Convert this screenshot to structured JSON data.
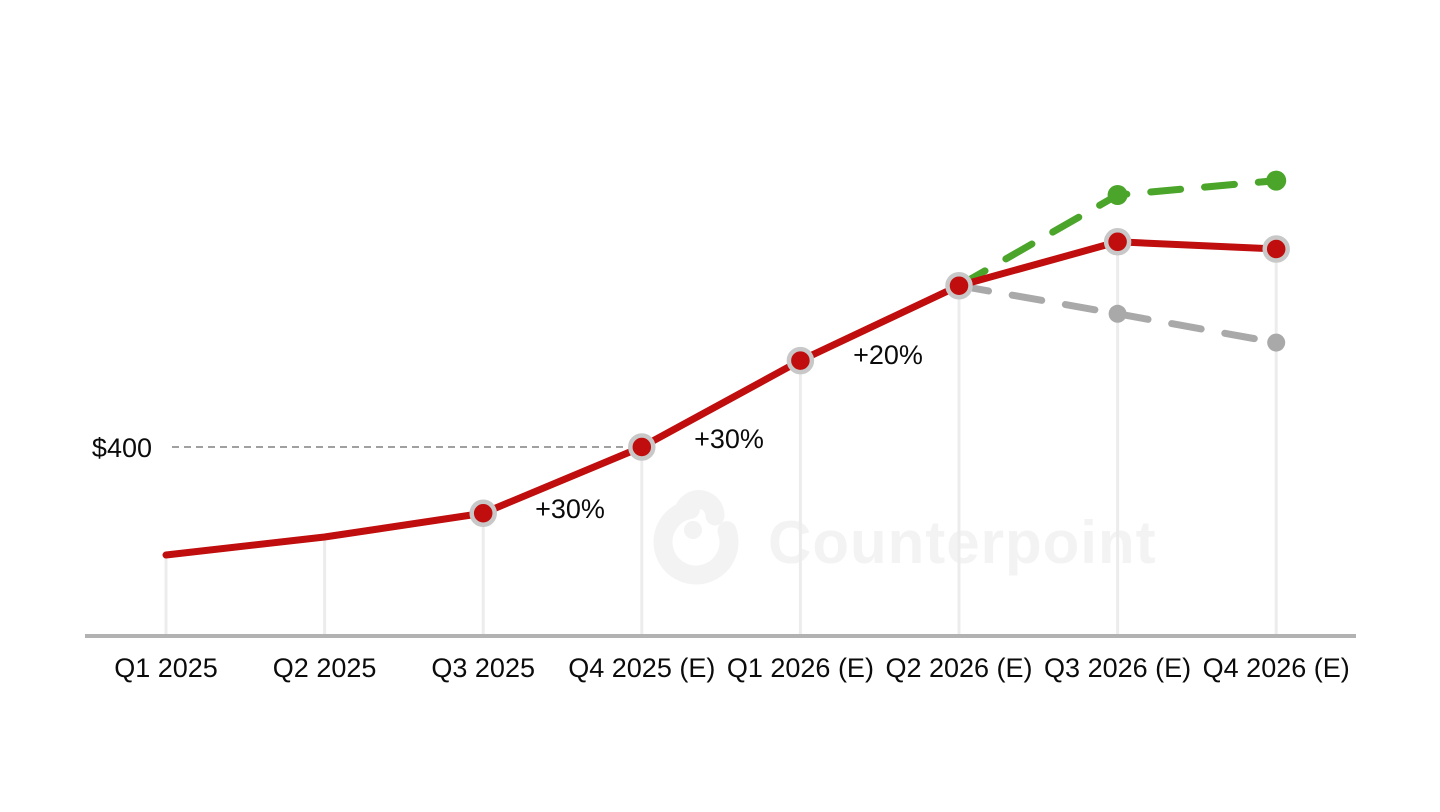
{
  "page": {
    "background": "#ffffff"
  },
  "watermark": {
    "text": "Counterpoint"
  },
  "colors": {
    "axis": "#b2b2b2",
    "stems": "#ececec",
    "marker_ring": "#c8c8c8",
    "reference_line": "#a0a0a0",
    "label_text": "#0b0b0b",
    "watermark": "#f3f3f3",
    "base_red": "#c00d0d",
    "upside_green": "#4aa52a",
    "downside_gray": "#a9a9a9"
  },
  "chart_data": {
    "type": "line",
    "title": "",
    "xlabel": "",
    "ylabel": "",
    "categories": [
      "Q1 2025",
      "Q2 2025",
      "Q3 2025",
      "Q4 2025 (E)",
      "Q1 2026 (E)",
      "Q2 2026 (E)",
      "Q3 2026 (E)",
      "Q4 2026 (E)"
    ],
    "series": [
      {
        "key": "base",
        "style": "solid",
        "color": "#c00d0d",
        "values": [
          250,
          275,
          308,
          400,
          520,
          624,
          685,
          675
        ],
        "marker_indices": [
          2,
          3,
          4,
          5,
          6,
          7
        ]
      },
      {
        "key": "upside",
        "style": "dashed",
        "color": "#4aa52a",
        "values": [
          null,
          null,
          null,
          null,
          null,
          624,
          750,
          770
        ],
        "marker_indices": [
          6,
          7
        ]
      },
      {
        "key": "downside",
        "style": "dashed",
        "color": "#a9a9a9",
        "values": [
          null,
          null,
          null,
          null,
          null,
          624,
          585,
          545
        ],
        "marker_indices": [
          6,
          7
        ]
      }
    ],
    "annotations": [
      {
        "text": "+30%",
        "between": [
          "Q3 2025",
          "Q4 2025 (E)"
        ]
      },
      {
        "text": "+30%",
        "between": [
          "Q4 2025 (E)",
          "Q1 2026 (E)"
        ]
      },
      {
        "text": "+20%",
        "between": [
          "Q1 2026 (E)",
          "Q2 2026 (E)"
        ]
      }
    ],
    "reference": {
      "label": "$400",
      "value": 400,
      "category": "Q4 2025 (E)"
    },
    "legend_position": "none",
    "grid": "vertical stems from each data point to x-axis",
    "y_axis_visible": false
  }
}
